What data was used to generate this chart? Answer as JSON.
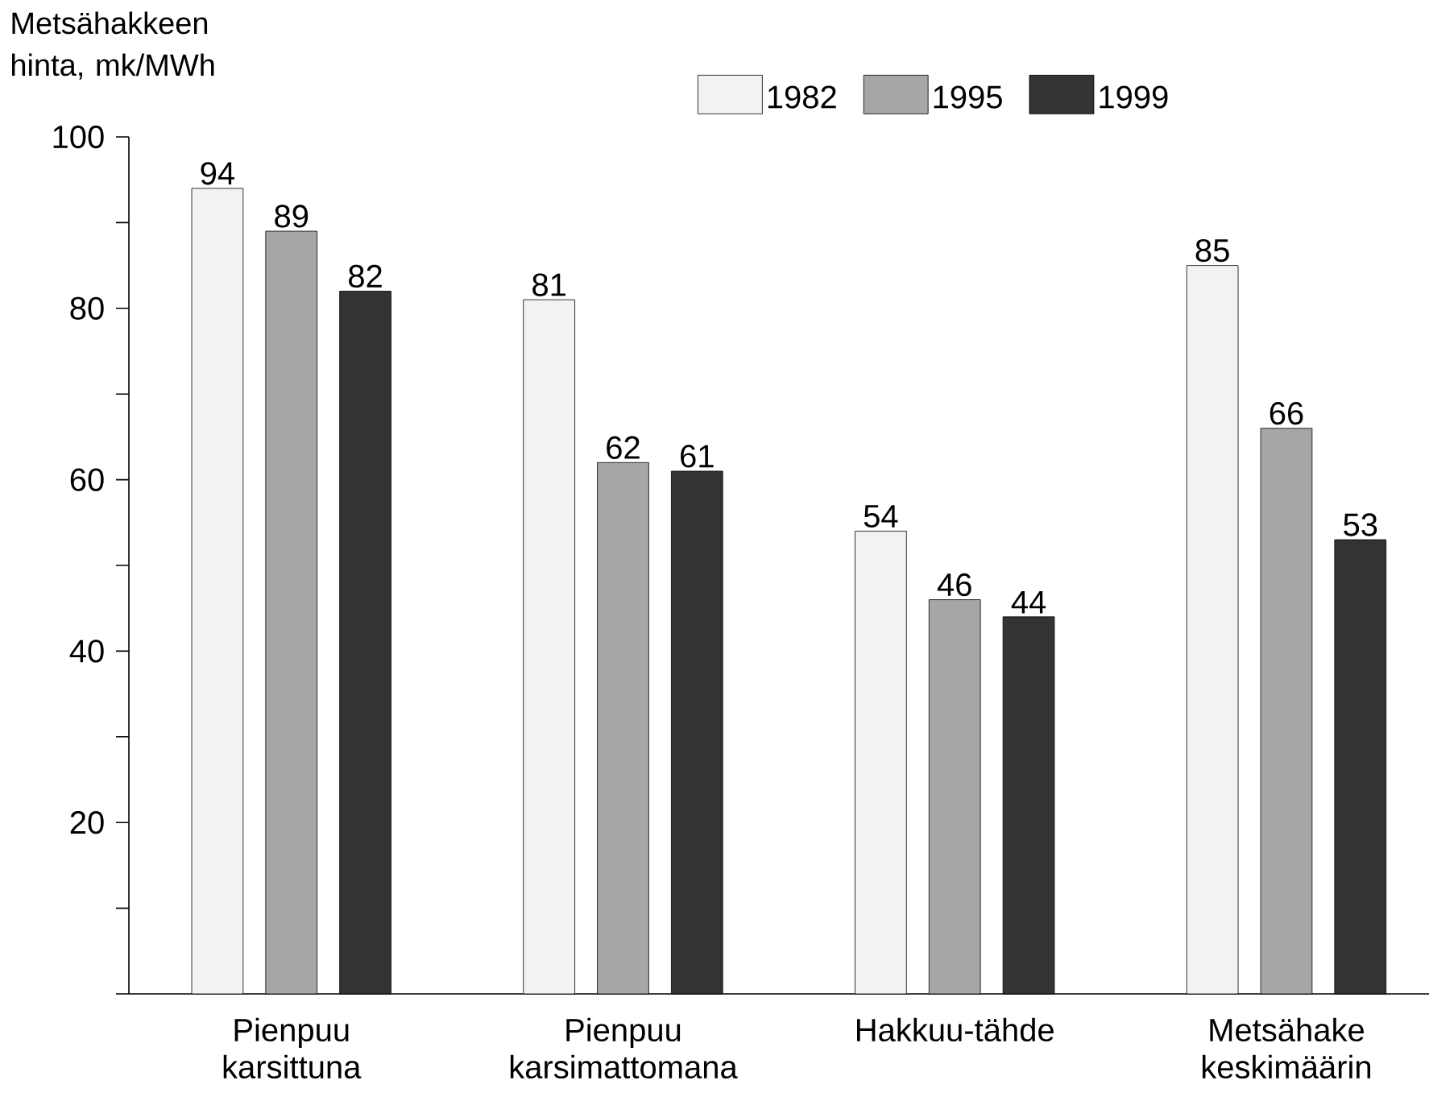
{
  "chart_data": {
    "type": "bar",
    "ylabel": "Metsähakkeen hinta, mk/MWh",
    "categories": [
      "Pienpuu karsittuna",
      "Pienpuu karsimattomana",
      "Hakkuu-tähde",
      "Metsähake keskimäärin"
    ],
    "series": [
      {
        "name": "1982",
        "color": "#f2f2f2",
        "values": [
          94,
          81,
          54,
          85
        ]
      },
      {
        "name": "1995",
        "color": "#a6a6a6",
        "values": [
          89,
          62,
          46,
          66
        ]
      },
      {
        "name": "1999",
        "color": "#333333",
        "values": [
          82,
          61,
          44,
          53
        ]
      }
    ],
    "ylim": [
      0,
      100
    ],
    "yticks": [
      {
        "value": 0,
        "label": null
      },
      {
        "value": 10,
        "label": null
      },
      20,
      {
        "value": 30,
        "label": null
      },
      40,
      {
        "value": 50,
        "label": null
      },
      60,
      {
        "value": 70,
        "label": null
      },
      80,
      {
        "value": 90,
        "label": null
      },
      100
    ],
    "data_labels": true,
    "legend": "top",
    "grid": false
  }
}
